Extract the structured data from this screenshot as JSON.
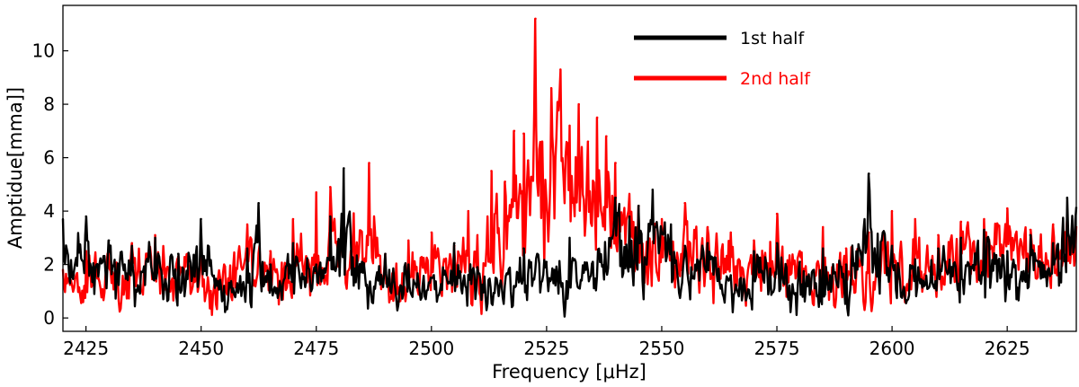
{
  "chart_data": {
    "type": "line",
    "xlabel": "Frequency [μHz]",
    "ylabel": "Amptidue[mma]]",
    "xlim": [
      2420,
      2640
    ],
    "ylim": [
      -0.5,
      11.7
    ],
    "xticks": [
      2425,
      2450,
      2475,
      2500,
      2525,
      2550,
      2575,
      2600,
      2625
    ],
    "yticks": [
      0,
      2,
      4,
      6,
      8,
      10
    ],
    "legend_position": "top-right",
    "grid": false,
    "series": [
      {
        "name": "1st half",
        "color": "#000000",
        "x": [
          2420,
          2425,
          2430,
          2435,
          2440,
          2445,
          2450,
          2455,
          2460,
          2462.5,
          2465,
          2470,
          2475,
          2478,
          2481,
          2485,
          2490,
          2495,
          2500,
          2505,
          2510,
          2515,
          2520,
          2523,
          2525,
          2530,
          2535,
          2540,
          2543,
          2545,
          2548,
          2552,
          2555,
          2560,
          2565,
          2570,
          2575,
          2580,
          2585,
          2590,
          2595,
          2600,
          2605,
          2610,
          2615,
          2620,
          2625,
          2630,
          2635,
          2638
        ],
        "values": [
          3.7,
          3.8,
          2.9,
          2.7,
          3.0,
          2.4,
          3.7,
          1.2,
          2.6,
          4.3,
          2.0,
          2.8,
          2.0,
          3.8,
          5.6,
          2.1,
          2.4,
          2.0,
          1.5,
          2.8,
          1.9,
          1.4,
          2.6,
          2.4,
          2.1,
          3.0,
          2.1,
          4.5,
          3.8,
          4.2,
          4.8,
          3.5,
          2.7,
          2.8,
          1.6,
          2.5,
          2.8,
          2.1,
          2.6,
          2.0,
          5.4,
          2.7,
          2.2,
          2.6,
          3.0,
          3.3,
          2.5,
          3.1,
          2.8,
          4.5
        ]
      },
      {
        "name": "2nd half",
        "color": "#ff0000",
        "x": [
          2420,
          2425,
          2430,
          2435,
          2440,
          2445,
          2450,
          2455,
          2460,
          2465,
          2470,
          2475,
          2478,
          2481,
          2486.5,
          2490,
          2495,
          2500,
          2505,
          2508,
          2510,
          2513,
          2516,
          2518,
          2520,
          2521,
          2522.6,
          2524,
          2526,
          2528,
          2530,
          2532,
          2534,
          2536,
          2538,
          2540,
          2545,
          2550,
          2555,
          2560,
          2565,
          2570,
          2575,
          2580,
          2585,
          2590,
          2595,
          2600,
          2605,
          2610,
          2615,
          2620,
          2625,
          2630,
          2635,
          2638
        ],
        "values": [
          1.8,
          2.5,
          2.4,
          2.8,
          3.1,
          2.3,
          2.6,
          2.0,
          3.5,
          2.5,
          3.7,
          4.7,
          4.9,
          3.5,
          5.8,
          2.4,
          2.9,
          3.2,
          2.7,
          4.0,
          3.1,
          5.5,
          5.1,
          7.0,
          6.9,
          5.9,
          11.2,
          6.6,
          8.6,
          9.3,
          7.2,
          8.0,
          6.6,
          7.5,
          6.8,
          5.8,
          4.2,
          3.7,
          4.3,
          3.4,
          3.2,
          2.9,
          3.9,
          2.5,
          3.4,
          2.6,
          3.2,
          4.0,
          3.7,
          3.1,
          3.6,
          3.7,
          4.1,
          3.3,
          3.5,
          3.8
        ]
      }
    ]
  }
}
